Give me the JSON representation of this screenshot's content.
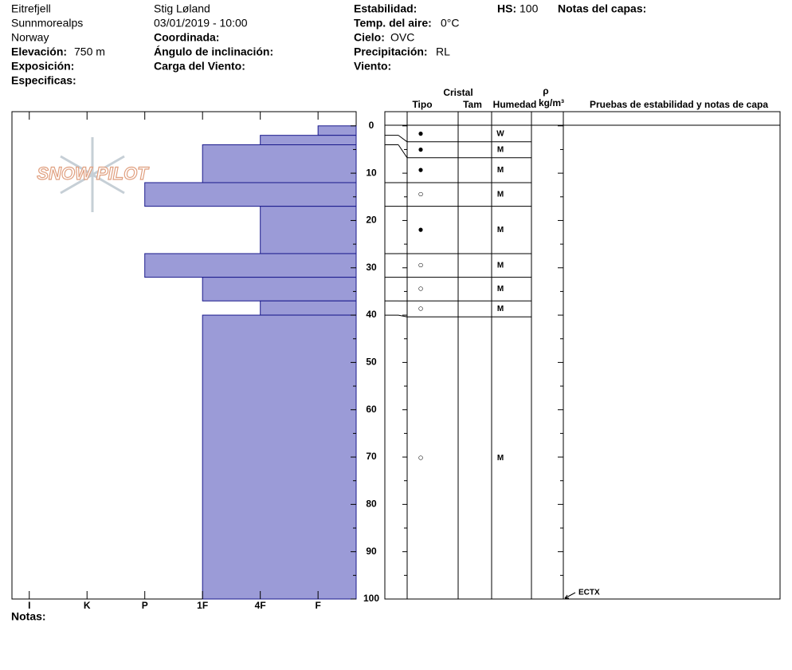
{
  "header": {
    "site": "Eitrefjell",
    "range": "Sunnmorealps",
    "country": "Norway",
    "elevation_label": "Elevación:",
    "elevation": "750 m",
    "aspect_label": "Exposición:",
    "specifics_label": "Especificas:",
    "observer": "Stig Løland",
    "datetime": "03/01/2019 - 10:00",
    "coordinates_label": "Coordinada:",
    "slope_label": "Ángulo de inclinación:",
    "wind_loading_label": "Carga del Viento:",
    "stability_label": "Estabilidad:",
    "air_temp_label": "Temp. del aire:",
    "air_temp": "0°C",
    "sky_label": "Cielo:",
    "sky": "OVC",
    "precip_label": "Precipitación:",
    "precip": "RL",
    "wind_label": "Viento:",
    "hs_label": "HS:",
    "hs": 100,
    "layer_notes_label": "Notas del capas:"
  },
  "chart_data": {
    "type": "snow-profile",
    "logo": "SNOW PILOT",
    "notes_label": "Notas:",
    "color": "#9b9bd7",
    "ylim": [
      -3,
      100
    ],
    "yticks": [
      0,
      10,
      20,
      30,
      40,
      50,
      60,
      70,
      80,
      90,
      100
    ],
    "xlim": [
      6.3,
      0.34
    ],
    "xticks": [
      {
        "value": 6,
        "label": "I"
      },
      {
        "value": 5,
        "label": "K"
      },
      {
        "value": 4,
        "label": "P"
      },
      {
        "value": 3,
        "label": "1F"
      },
      {
        "value": 2,
        "label": "4F"
      },
      {
        "value": 1,
        "label": "F"
      }
    ],
    "columns": {
      "crystal": "Cristal",
      "type": "Tipo",
      "size": "Tam",
      "moisture": "Humedad",
      "density_symbol": "ρ",
      "density_unit": "kg/m³",
      "tests": "Pruebas de estabilidad y notas de capa"
    },
    "layers": [
      {
        "top": 0,
        "bottom": 2,
        "hardness": 1,
        "grain": "●",
        "moisture": "W"
      },
      {
        "top": 2,
        "bottom": 4,
        "hardness": 2,
        "grain": "●",
        "moisture": "M"
      },
      {
        "top": 4,
        "bottom": 12,
        "hardness": 3,
        "grain": "●",
        "moisture": "M"
      },
      {
        "top": 12,
        "bottom": 17,
        "hardness": 4,
        "grain": "○",
        "moisture": "M"
      },
      {
        "top": 17,
        "bottom": 27,
        "hardness": 2,
        "grain": "●",
        "moisture": "M"
      },
      {
        "top": 27,
        "bottom": 32,
        "hardness": 4,
        "grain": "○",
        "moisture": "M"
      },
      {
        "top": 32,
        "bottom": 37,
        "hardness": 3,
        "grain": "○",
        "moisture": "M"
      },
      {
        "top": 37,
        "bottom": 40,
        "hardness": 2,
        "grain": "○",
        "moisture": "M"
      },
      {
        "top": 40,
        "bottom": 100,
        "hardness": 3,
        "grain": "○",
        "moisture": "M"
      }
    ],
    "stability_tests": [
      {
        "depth": 100,
        "label": "ECTX"
      }
    ]
  }
}
